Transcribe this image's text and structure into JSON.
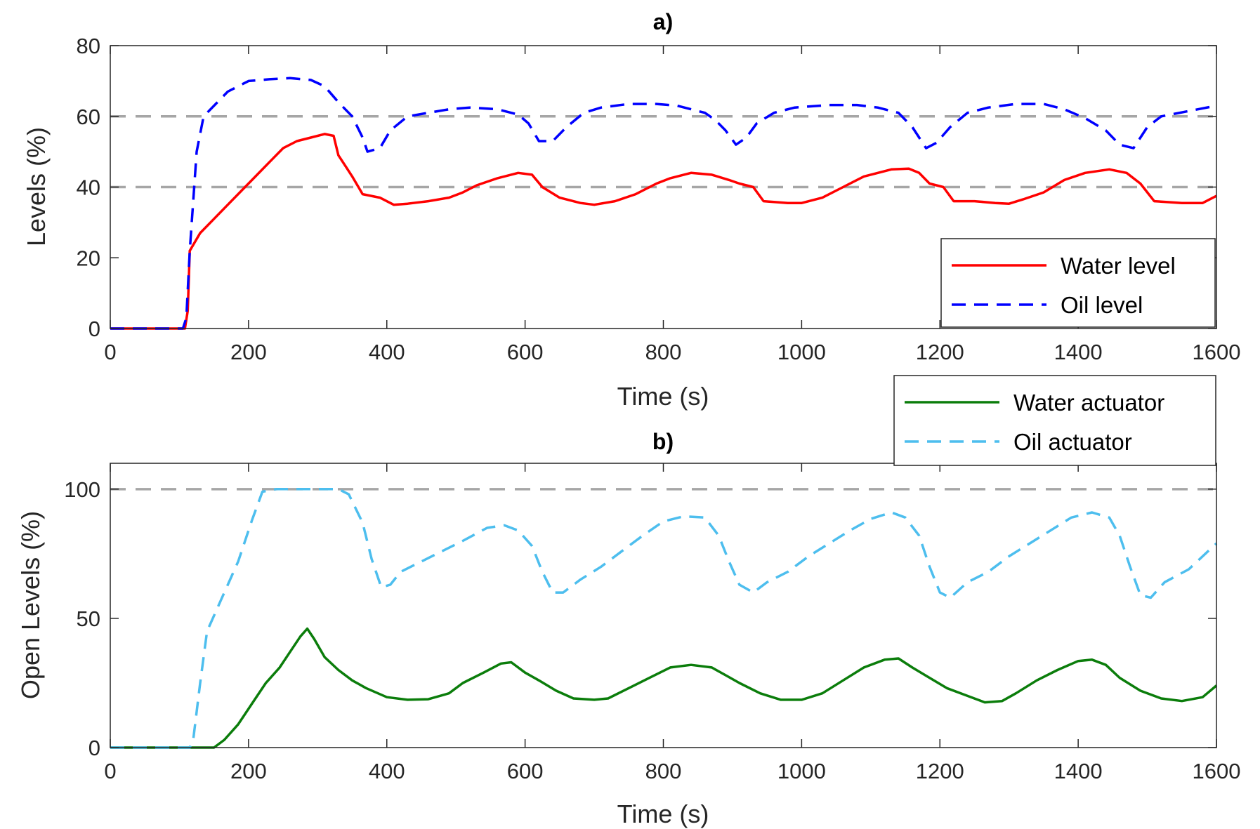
{
  "chart_data": [
    {
      "type": "line",
      "title": "a)",
      "xlabel": "Time (s)",
      "ylabel": "Levels (%)",
      "xlim": [
        0,
        1600
      ],
      "ylim": [
        0,
        80
      ],
      "xticks": [
        0,
        200,
        400,
        600,
        800,
        1000,
        1200,
        1400,
        1600
      ],
      "yticks": [
        0,
        20,
        40,
        60,
        80
      ],
      "grid": false,
      "legend_placement": "bottom-right",
      "reference_lines": [
        {
          "y": 40,
          "color": "#a6a6a6",
          "style": "dashed"
        },
        {
          "y": 60,
          "color": "#a6a6a6",
          "style": "dashed"
        }
      ],
      "series": [
        {
          "name": "Water level",
          "color": "#ff0000",
          "style": "solid",
          "points": [
            [
              0,
              0
            ],
            [
              108,
              0
            ],
            [
              112,
              5
            ],
            [
              115,
              22
            ],
            [
              130,
              27
            ],
            [
              150,
              31
            ],
            [
              170,
              35
            ],
            [
              190,
              39
            ],
            [
              210,
              43
            ],
            [
              230,
              47
            ],
            [
              250,
              51
            ],
            [
              270,
              53
            ],
            [
              290,
              54
            ],
            [
              310,
              55
            ],
            [
              323,
              54.5
            ],
            [
              330,
              49
            ],
            [
              340,
              46
            ],
            [
              350,
              43
            ],
            [
              365,
              38
            ],
            [
              390,
              37
            ],
            [
              410,
              35
            ],
            [
              430,
              35.3
            ],
            [
              460,
              36
            ],
            [
              490,
              37
            ],
            [
              510,
              38.5
            ],
            [
              530,
              40.5
            ],
            [
              560,
              42.5
            ],
            [
              590,
              44
            ],
            [
              610,
              43.5
            ],
            [
              625,
              40
            ],
            [
              650,
              37
            ],
            [
              680,
              35.5
            ],
            [
              700,
              35
            ],
            [
              730,
              36
            ],
            [
              760,
              38
            ],
            [
              790,
              41
            ],
            [
              810,
              42.5
            ],
            [
              840,
              44
            ],
            [
              870,
              43.5
            ],
            [
              895,
              42
            ],
            [
              910,
              41
            ],
            [
              930,
              40
            ],
            [
              945,
              36
            ],
            [
              980,
              35.5
            ],
            [
              1000,
              35.5
            ],
            [
              1030,
              37
            ],
            [
              1060,
              40
            ],
            [
              1090,
              43
            ],
            [
              1130,
              45
            ],
            [
              1155,
              45.2
            ],
            [
              1170,
              44
            ],
            [
              1185,
              41
            ],
            [
              1205,
              40
            ],
            [
              1220,
              36
            ],
            [
              1250,
              36
            ],
            [
              1280,
              35.5
            ],
            [
              1300,
              35.3
            ],
            [
              1320,
              36.5
            ],
            [
              1350,
              38.5
            ],
            [
              1380,
              42
            ],
            [
              1410,
              44
            ],
            [
              1445,
              45
            ],
            [
              1470,
              44
            ],
            [
              1490,
              41
            ],
            [
              1510,
              36
            ],
            [
              1550,
              35.5
            ],
            [
              1580,
              35.5
            ],
            [
              1600,
              37.5
            ]
          ]
        },
        {
          "name": "Oil level",
          "color": "#0000ff",
          "style": "dashed",
          "points": [
            [
              0,
              0
            ],
            [
              105,
              0
            ],
            [
              110,
              3
            ],
            [
              115,
              22
            ],
            [
              125,
              50
            ],
            [
              135,
              60
            ],
            [
              150,
              63
            ],
            [
              170,
              67
            ],
            [
              200,
              70
            ],
            [
              230,
              70.5
            ],
            [
              260,
              70.8
            ],
            [
              290,
              70.3
            ],
            [
              310,
              68.5
            ],
            [
              330,
              64
            ],
            [
              350,
              60
            ],
            [
              365,
              54
            ],
            [
              372,
              50
            ],
            [
              390,
              51
            ],
            [
              405,
              56
            ],
            [
              430,
              60
            ],
            [
              460,
              61
            ],
            [
              490,
              62
            ],
            [
              520,
              62.5
            ],
            [
              560,
              62
            ],
            [
              590,
              60.5
            ],
            [
              605,
              58
            ],
            [
              620,
              53
            ],
            [
              640,
              53
            ],
            [
              660,
              57
            ],
            [
              685,
              61
            ],
            [
              710,
              62.5
            ],
            [
              750,
              63.5
            ],
            [
              790,
              63.5
            ],
            [
              820,
              63
            ],
            [
              860,
              61
            ],
            [
              875,
              59
            ],
            [
              890,
              56
            ],
            [
              905,
              52
            ],
            [
              920,
              54
            ],
            [
              935,
              58
            ],
            [
              960,
              61
            ],
            [
              990,
              62.5
            ],
            [
              1040,
              63.2
            ],
            [
              1080,
              63.2
            ],
            [
              1110,
              62.5
            ],
            [
              1140,
              61
            ],
            [
              1160,
              57
            ],
            [
              1180,
              51
            ],
            [
              1195,
              52.5
            ],
            [
              1215,
              57
            ],
            [
              1240,
              61
            ],
            [
              1270,
              62.5
            ],
            [
              1310,
              63.5
            ],
            [
              1350,
              63.5
            ],
            [
              1380,
              62
            ],
            [
              1410,
              59.5
            ],
            [
              1440,
              56
            ],
            [
              1460,
              52
            ],
            [
              1480,
              51
            ],
            [
              1500,
              57
            ],
            [
              1520,
              60
            ],
            [
              1560,
              61.5
            ],
            [
              1600,
              63
            ]
          ]
        }
      ]
    },
    {
      "type": "line",
      "title": "b)",
      "xlabel": "Time (s)",
      "ylabel": "Open Levels (%)",
      "xlim": [
        0,
        1600
      ],
      "ylim": [
        0,
        110
      ],
      "xticks": [
        0,
        200,
        400,
        600,
        800,
        1000,
        1200,
        1400,
        1600
      ],
      "yticks": [
        0,
        50,
        100
      ],
      "grid": false,
      "legend_placement": "top-right",
      "reference_lines": [
        {
          "y": 100,
          "color": "#a6a6a6",
          "style": "dashed"
        }
      ],
      "series": [
        {
          "name": "Water actuator",
          "color": "#0b7d0b",
          "style": "solid",
          "points": [
            [
              0,
              0
            ],
            [
              150,
              0
            ],
            [
              165,
              3
            ],
            [
              185,
              9
            ],
            [
              205,
              17
            ],
            [
              225,
              25
            ],
            [
              245,
              31
            ],
            [
              260,
              37
            ],
            [
              275,
              43
            ],
            [
              285,
              46
            ],
            [
              295,
              42
            ],
            [
              310,
              35
            ],
            [
              330,
              30
            ],
            [
              350,
              26
            ],
            [
              370,
              23
            ],
            [
              400,
              19.5
            ],
            [
              430,
              18.5
            ],
            [
              460,
              18.7
            ],
            [
              490,
              21
            ],
            [
              510,
              25
            ],
            [
              540,
              29
            ],
            [
              565,
              32.5
            ],
            [
              580,
              33
            ],
            [
              600,
              29
            ],
            [
              620,
              26
            ],
            [
              645,
              22
            ],
            [
              670,
              19
            ],
            [
              700,
              18.5
            ],
            [
              720,
              19
            ],
            [
              750,
              23
            ],
            [
              780,
              27
            ],
            [
              810,
              31
            ],
            [
              840,
              32
            ],
            [
              870,
              31
            ],
            [
              890,
              28
            ],
            [
              910,
              25
            ],
            [
              940,
              21
            ],
            [
              970,
              18.5
            ],
            [
              1000,
              18.5
            ],
            [
              1030,
              21
            ],
            [
              1060,
              26
            ],
            [
              1090,
              31
            ],
            [
              1120,
              34
            ],
            [
              1140,
              34.5
            ],
            [
              1160,
              31
            ],
            [
              1185,
              27
            ],
            [
              1210,
              23
            ],
            [
              1240,
              20
            ],
            [
              1265,
              17.5
            ],
            [
              1290,
              18
            ],
            [
              1310,
              21
            ],
            [
              1340,
              26
            ],
            [
              1370,
              30
            ],
            [
              1400,
              33.5
            ],
            [
              1420,
              34
            ],
            [
              1440,
              32
            ],
            [
              1460,
              27
            ],
            [
              1490,
              22
            ],
            [
              1520,
              19
            ],
            [
              1550,
              18
            ],
            [
              1580,
              19.5
            ],
            [
              1600,
              24
            ]
          ]
        },
        {
          "name": "Oil actuator",
          "color": "#4dbeee",
          "style": "dashed",
          "points": [
            [
              0,
              0
            ],
            [
              115,
              0
            ],
            [
              120,
              3
            ],
            [
              130,
              25
            ],
            [
              140,
              45
            ],
            [
              160,
              57
            ],
            [
              185,
              72
            ],
            [
              205,
              88
            ],
            [
              220,
              99
            ],
            [
              240,
              100
            ],
            [
              330,
              100
            ],
            [
              345,
              98
            ],
            [
              365,
              87
            ],
            [
              378,
              73
            ],
            [
              392,
              62
            ],
            [
              405,
              63
            ],
            [
              420,
              68
            ],
            [
              450,
              72
            ],
            [
              480,
              76
            ],
            [
              510,
              80
            ],
            [
              545,
              85
            ],
            [
              570,
              86
            ],
            [
              590,
              84
            ],
            [
              610,
              78
            ],
            [
              625,
              68
            ],
            [
              640,
              60
            ],
            [
              655,
              60
            ],
            [
              680,
              65
            ],
            [
              710,
              70
            ],
            [
              740,
              76
            ],
            [
              770,
              82
            ],
            [
              800,
              87.5
            ],
            [
              830,
              89.5
            ],
            [
              860,
              89
            ],
            [
              880,
              82
            ],
            [
              895,
              72
            ],
            [
              910,
              63
            ],
            [
              930,
              60
            ],
            [
              950,
              64
            ],
            [
              980,
              68
            ],
            [
              1010,
              74
            ],
            [
              1040,
              79
            ],
            [
              1070,
              84
            ],
            [
              1100,
              88.5
            ],
            [
              1130,
              91
            ],
            [
              1150,
              89
            ],
            [
              1170,
              82
            ],
            [
              1185,
              70
            ],
            [
              1200,
              60
            ],
            [
              1215,
              58
            ],
            [
              1240,
              64
            ],
            [
              1270,
              68
            ],
            [
              1300,
              74
            ],
            [
              1330,
              79
            ],
            [
              1360,
              84
            ],
            [
              1390,
              89
            ],
            [
              1420,
              91
            ],
            [
              1445,
              89
            ],
            [
              1460,
              82
            ],
            [
              1475,
              70
            ],
            [
              1490,
              59
            ],
            [
              1505,
              58
            ],
            [
              1525,
              64
            ],
            [
              1560,
              69
            ],
            [
              1600,
              79
            ]
          ]
        }
      ]
    }
  ]
}
